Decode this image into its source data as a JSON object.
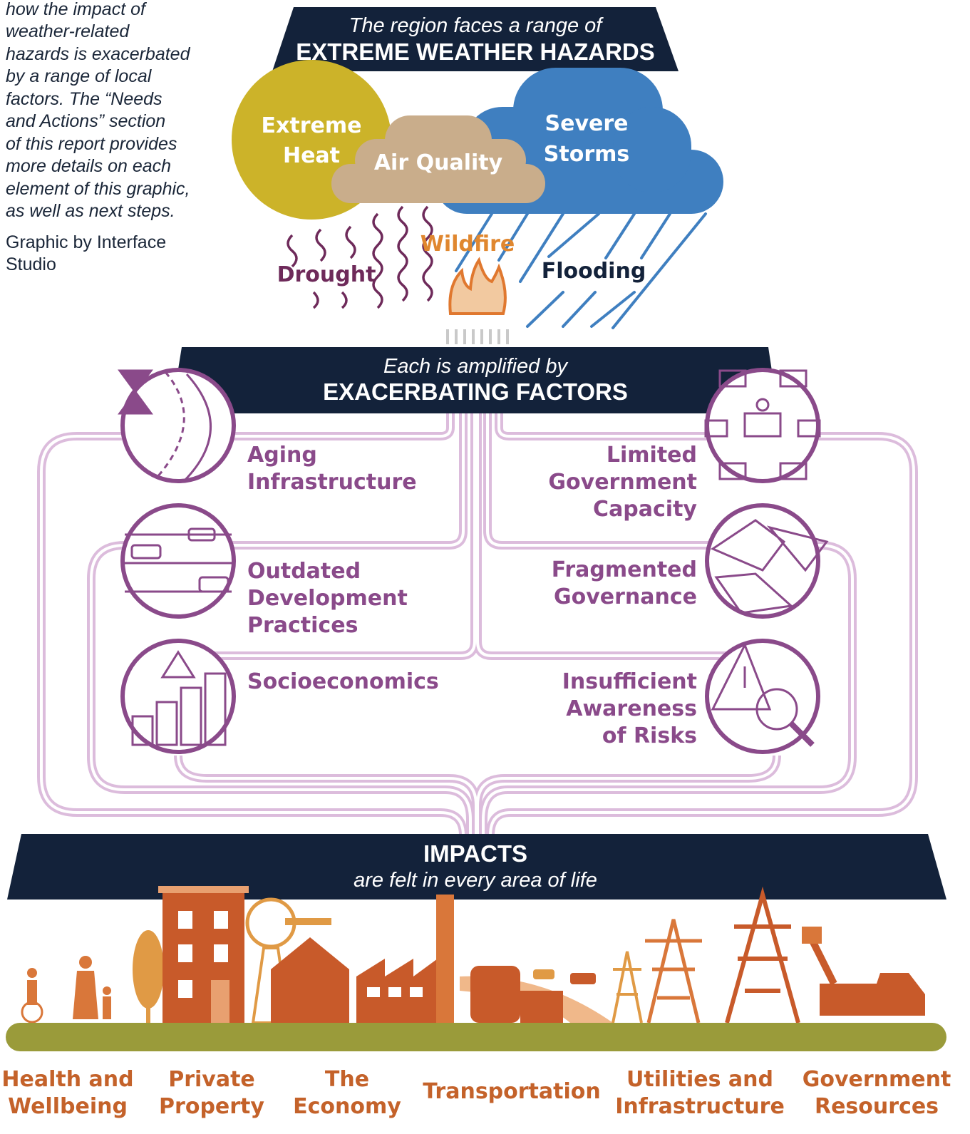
{
  "sidebar": {
    "caption_lines": [
      "how the impact of",
      "weather-related",
      "hazards is exacerbated",
      "by a range of local",
      "factors. The “Needs",
      "and Actions” section",
      "of this report provides",
      "more details on each",
      "element of this graphic,",
      "as well as next steps."
    ],
    "credit_lines": [
      "Graphic by Interface",
      "Studio"
    ]
  },
  "hazards": {
    "subtitle": "The region faces a range of",
    "title": "EXTREME WEATHER HAZARDS",
    "items": [
      {
        "lines": [
          "Extreme",
          "Heat"
        ]
      },
      {
        "lines": [
          "Air Quality"
        ]
      },
      {
        "lines": [
          "Severe",
          "Storms"
        ]
      },
      {
        "lines": [
          "Wildfire"
        ]
      },
      {
        "lines": [
          "Drought"
        ]
      },
      {
        "lines": [
          "Flooding"
        ]
      }
    ]
  },
  "factors": {
    "subtitle": "Each is amplified by",
    "title": "EXACERBATING FACTORS",
    "items": [
      {
        "lines": [
          "Aging",
          "Infrastructure"
        ]
      },
      {
        "lines": [
          "Outdated",
          "Development",
          "Practices"
        ]
      },
      {
        "lines": [
          "Socioeconomics"
        ]
      },
      {
        "lines": [
          "Limited",
          "Government",
          "Capacity"
        ]
      },
      {
        "lines": [
          "Fragmented",
          "Governance"
        ]
      },
      {
        "lines": [
          "Insufficient",
          "Awareness",
          "of Risks"
        ]
      }
    ]
  },
  "impacts": {
    "title": "IMPACTS",
    "subtitle": "are felt in every area of life",
    "items": [
      {
        "lines": [
          "Health and",
          "Wellbeing"
        ]
      },
      {
        "lines": [
          "Private",
          "Property"
        ]
      },
      {
        "lines": [
          "The",
          "Economy"
        ]
      },
      {
        "lines": [
          "Transportation"
        ]
      },
      {
        "lines": [
          "Utilities and",
          "Infrastructure"
        ]
      },
      {
        "lines": [
          "Government",
          "Resources"
        ]
      }
    ]
  }
}
